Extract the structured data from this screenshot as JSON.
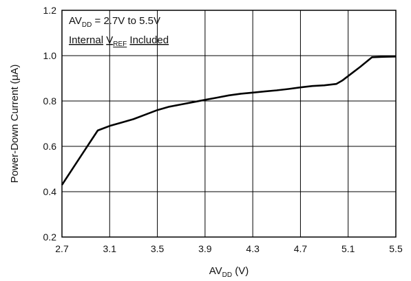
{
  "chart_data": {
    "type": "line",
    "xlabel": {
      "main": "AV",
      "sub": "DD",
      "unit": " (V)"
    },
    "ylabel": "Power-Down Current (μA)",
    "xlim": [
      2.7,
      5.5
    ],
    "ylim": [
      0.2,
      1.2
    ],
    "xticks": [
      "2.7",
      "3.1",
      "3.5",
      "3.9",
      "4.3",
      "4.7",
      "5.1",
      "5.5"
    ],
    "yticks": [
      "0.2",
      "0.4",
      "0.6",
      "0.8",
      "1.0",
      "1.2"
    ],
    "grid": true,
    "annotation": {
      "line1": {
        "main": "AV",
        "sub": "DD",
        "rest": " = 2.7V to 5.5V"
      },
      "line2": {
        "part1": "Internal",
        "v": "V",
        "sub": "REF",
        "part3": "Included"
      }
    },
    "series": [
      {
        "x": [
          2.7,
          2.8,
          2.9,
          3.0,
          3.05,
          3.1,
          3.2,
          3.3,
          3.4,
          3.5,
          3.6,
          3.7,
          3.8,
          3.9,
          4.0,
          4.1,
          4.2,
          4.3,
          4.4,
          4.5,
          4.6,
          4.7,
          4.8,
          4.9,
          5.0,
          5.05,
          5.1,
          5.2,
          5.3,
          5.4,
          5.5
        ],
        "y": [
          0.43,
          0.51,
          0.59,
          0.67,
          0.68,
          0.69,
          0.705,
          0.72,
          0.74,
          0.76,
          0.775,
          0.785,
          0.795,
          0.805,
          0.815,
          0.825,
          0.832,
          0.837,
          0.842,
          0.847,
          0.853,
          0.86,
          0.866,
          0.869,
          0.875,
          0.89,
          0.91,
          0.95,
          0.993,
          0.995,
          0.996
        ]
      }
    ]
  }
}
